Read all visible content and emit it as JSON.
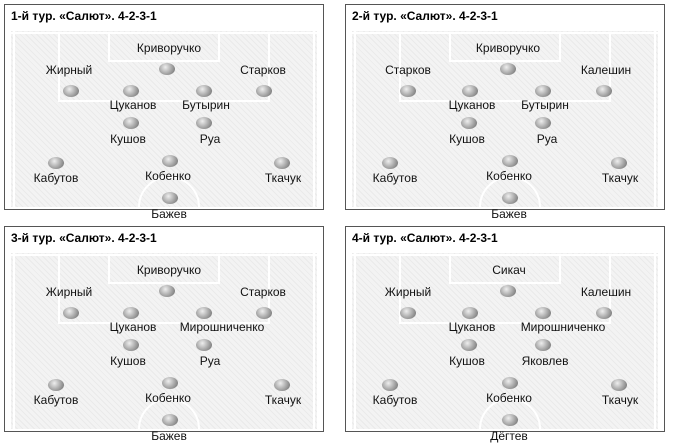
{
  "panels": [
    {
      "title": "1-й тур.  «Салют». 4-2-3-1",
      "players": {
        "p1": "Криворучко",
        "p2": "Жирный",
        "p3": "Старков",
        "p4": "Цуканов",
        "p5": "Бутырин",
        "p6": "Кушов",
        "p7": "Руа",
        "p8": "Кабутов",
        "p9": "Кобенко",
        "p10": "Ткачук",
        "p11": "Бажев"
      }
    },
    {
      "title": "2-й тур.  «Салют». 4-2-3-1",
      "players": {
        "p1": "Криворучко",
        "p2": "Старков",
        "p3": "Калешин",
        "p4": "Цуканов",
        "p5": "Бутырин",
        "p6": "Кушов",
        "p7": "Руа",
        "p8": "Кабутов",
        "p9": "Кобенко",
        "p10": "Ткачук",
        "p11": "Бажев"
      }
    },
    {
      "title": "3-й тур.  «Салют». 4-2-3-1",
      "players": {
        "p1": "Криворучко",
        "p2": "Жирный",
        "p3": "Старков",
        "p4": "Цуканов",
        "p5": "Мирошниченко",
        "p6": "Кушов",
        "p7": "Руа",
        "p8": "Кабутов",
        "p9": "Кобенко",
        "p10": "Ткачук",
        "p11": "Бажев"
      }
    },
    {
      "title": "4-й тур.  «Салют». 4-2-3-1",
      "players": {
        "p1": "Сикач",
        "p2": "Жирный",
        "p3": "Калешин",
        "p4": "Цуканов",
        "p5": "Мирошниченко",
        "p6": "Кушов",
        "p7": "Яковлев",
        "p8": "Кабутов",
        "p9": "Кобенко",
        "p10": "Ткачук",
        "p11": "Дёгтев"
      }
    }
  ]
}
